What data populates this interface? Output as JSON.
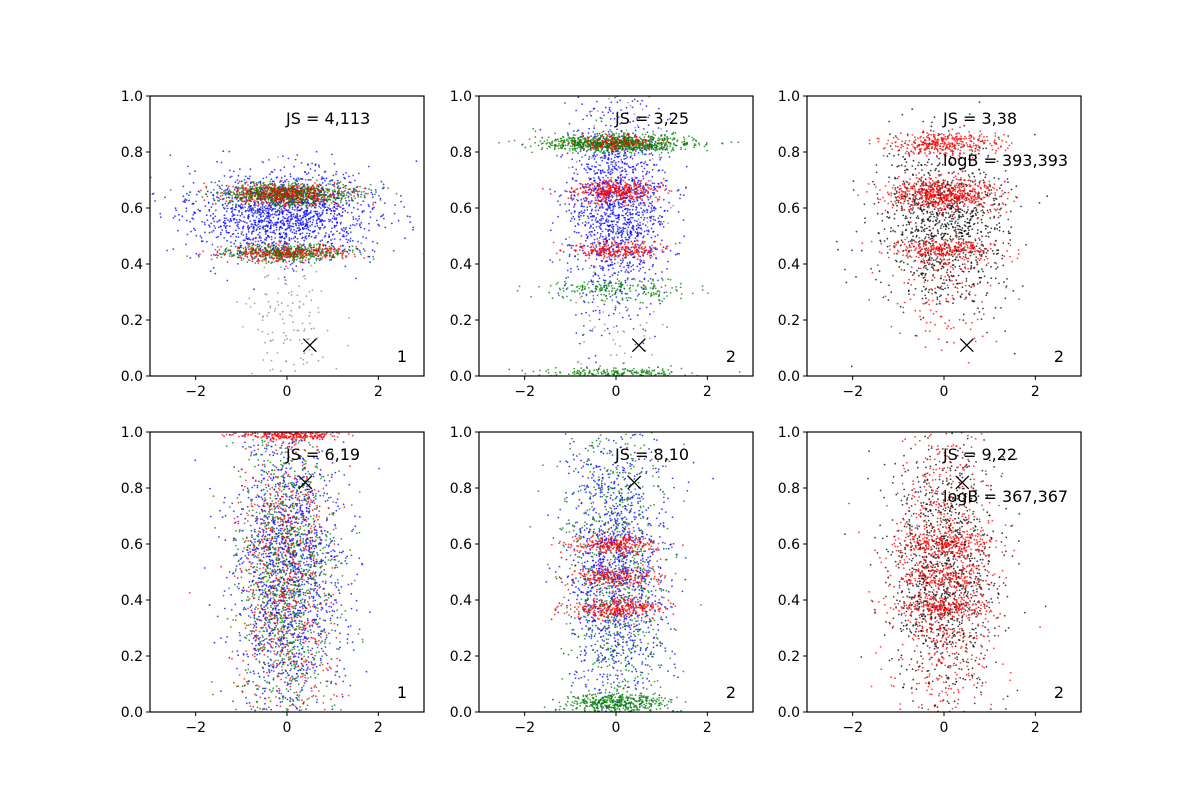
{
  "figure": {
    "background": "#ffffff"
  },
  "chart_data": [
    {
      "type": "scatter",
      "panel_row": 1,
      "panel_col": 1,
      "xlim": [
        -3,
        3
      ],
      "ylim": [
        0,
        1
      ],
      "xticks": [
        "−2",
        "0",
        "2"
      ],
      "xtick_values": [
        -2,
        0,
        2
      ],
      "yticks": [
        "0.0",
        "0.2",
        "0.4",
        "0.6",
        "0.8",
        "1.0"
      ],
      "ytick_values": [
        0,
        0.2,
        0.4,
        0.6,
        0.8,
        1.0
      ],
      "annotations": [
        "JS = 4,113"
      ],
      "corner_label": "1",
      "marker": {
        "x": 0.5,
        "y": 0.11,
        "symbol": "x",
        "color": "#000000"
      },
      "series": [
        {
          "color": "#0000ff",
          "x_spread": 1.0,
          "y_bands": [
            [
              0.58,
              0.08,
              0.45
            ]
          ],
          "count": 1500
        },
        {
          "color": "#008000",
          "x_spread": 0.7,
          "y_bands": [
            [
              0.65,
              0.02,
              0.55
            ],
            [
              0.44,
              0.015,
              0.3
            ]
          ],
          "count": 1300
        },
        {
          "color": "#ff0000",
          "x_spread": 0.7,
          "y_bands": [
            [
              0.65,
              0.02,
              0.6
            ],
            [
              0.44,
              0.015,
              0.4
            ]
          ],
          "count": 700
        },
        {
          "color": "#888888",
          "x_spread": 0.5,
          "y_bands": [
            [
              0.2,
              0.15,
              1.0
            ]
          ],
          "count": 150
        }
      ]
    },
    {
      "type": "scatter",
      "panel_row": 1,
      "panel_col": 2,
      "xlim": [
        -3,
        3
      ],
      "ylim": [
        0,
        1
      ],
      "xticks": [
        "−2",
        "0",
        "2"
      ],
      "xtick_values": [
        -2,
        0,
        2
      ],
      "yticks": [
        "0.0",
        "0.2",
        "0.4",
        "0.6",
        "0.8",
        "1.0"
      ],
      "ytick_values": [
        0,
        0.2,
        0.4,
        0.6,
        0.8,
        1.0
      ],
      "annotations": [
        "JS = 3,25"
      ],
      "corner_label": "2",
      "marker": {
        "x": 0.5,
        "y": 0.11,
        "symbol": "x",
        "color": "#000000"
      },
      "series": [
        {
          "color": "#0000ff",
          "x_spread": 0.55,
          "y_bands": [
            [
              0.6,
              0.18,
              1.0
            ]
          ],
          "count": 1400
        },
        {
          "color": "#008000",
          "x_spread": 0.8,
          "y_bands": [
            [
              0.83,
              0.015,
              0.7
            ],
            [
              0.31,
              0.02,
              0.15
            ],
            [
              0.01,
              0.01,
              0.15
            ]
          ],
          "count": 1300
        },
        {
          "color": "#ff0000",
          "x_spread": 0.5,
          "y_bands": [
            [
              0.66,
              0.02,
              0.5
            ],
            [
              0.45,
              0.015,
              0.3
            ],
            [
              0.83,
              0.015,
              0.2
            ]
          ],
          "count": 800
        },
        {
          "color": "#888888",
          "x_spread": 0.5,
          "y_bands": [
            [
              0.5,
              0.3,
              1.0
            ]
          ],
          "count": 150
        }
      ]
    },
    {
      "type": "scatter",
      "panel_row": 1,
      "panel_col": 3,
      "xlim": [
        -3,
        3
      ],
      "ylim": [
        0,
        1
      ],
      "xticks": [
        "−2",
        "0",
        "2"
      ],
      "xtick_values": [
        -2,
        0,
        2
      ],
      "yticks": [
        "0.0",
        "0.2",
        "0.4",
        "0.6",
        "0.8",
        "1.0"
      ],
      "ytick_values": [
        0,
        0.2,
        0.4,
        0.6,
        0.8,
        1.0
      ],
      "annotations": [
        "JS = 3,38",
        "logB = 393,393"
      ],
      "corner_label": "2",
      "marker": {
        "x": 0.5,
        "y": 0.11,
        "symbol": "x",
        "color": "#000000"
      },
      "series": [
        {
          "color": "#000000",
          "x_spread": 0.7,
          "y_bands": [
            [
              0.55,
              0.15,
              1.0
            ]
          ],
          "count": 1100
        },
        {
          "color": "#ff0000",
          "x_spread": 0.6,
          "y_bands": [
            [
              0.65,
              0.03,
              0.45
            ],
            [
              0.83,
              0.02,
              0.25
            ],
            [
              0.45,
              0.02,
              0.2
            ],
            [
              0.3,
              0.1,
              0.1
            ]
          ],
          "count": 1400
        }
      ]
    },
    {
      "type": "scatter",
      "panel_row": 2,
      "panel_col": 1,
      "xlim": [
        -3,
        3
      ],
      "ylim": [
        0,
        1
      ],
      "xticks": [
        "−2",
        "0",
        "2"
      ],
      "xtick_values": [
        -2,
        0,
        2
      ],
      "yticks": [
        "0.0",
        "0.2",
        "0.4",
        "0.6",
        "0.8",
        "1.0"
      ],
      "ytick_values": [
        0,
        0.2,
        0.4,
        0.6,
        0.8,
        1.0
      ],
      "annotations": [
        "JS = 6,19"
      ],
      "corner_label": "1",
      "marker": {
        "x": 0.4,
        "y": 0.82,
        "symbol": "x",
        "color": "#000000"
      },
      "series": [
        {
          "color": "#0000ff",
          "x_spread": 0.6,
          "y_bands": [
            [
              0.5,
              0.25,
              1.0
            ]
          ],
          "count": 1500
        },
        {
          "color": "#008000",
          "x_spread": 0.55,
          "y_bands": [
            [
              0.5,
              0.28,
              1.0
            ]
          ],
          "count": 1000
        },
        {
          "color": "#ff0000",
          "x_spread": 0.55,
          "y_bands": [
            [
              0.5,
              0.28,
              0.7
            ],
            [
              0.99,
              0.01,
              0.3
            ]
          ],
          "count": 900
        }
      ]
    },
    {
      "type": "scatter",
      "panel_row": 2,
      "panel_col": 2,
      "xlim": [
        -3,
        3
      ],
      "ylim": [
        0,
        1
      ],
      "xticks": [
        "−2",
        "0",
        "2"
      ],
      "xtick_values": [
        -2,
        0,
        2
      ],
      "yticks": [
        "0.0",
        "0.2",
        "0.4",
        "0.6",
        "0.8",
        "1.0"
      ],
      "ytick_values": [
        0,
        0.2,
        0.4,
        0.6,
        0.8,
        1.0
      ],
      "annotations": [
        "JS = 8,10"
      ],
      "corner_label": "2",
      "marker": {
        "x": 0.4,
        "y": 0.82,
        "symbol": "x",
        "color": "#000000"
      },
      "series": [
        {
          "color": "#0000ff",
          "x_spread": 0.55,
          "y_bands": [
            [
              0.5,
              0.25,
              1.0
            ]
          ],
          "count": 1300
        },
        {
          "color": "#008000",
          "x_spread": 0.55,
          "y_bands": [
            [
              0.5,
              0.28,
              0.6
            ],
            [
              0.03,
              0.02,
              0.4
            ]
          ],
          "count": 1100
        },
        {
          "color": "#ff0000",
          "x_spread": 0.5,
          "y_bands": [
            [
              0.6,
              0.02,
              0.3
            ],
            [
              0.48,
              0.02,
              0.3
            ],
            [
              0.37,
              0.02,
              0.4
            ]
          ],
          "count": 800
        }
      ]
    },
    {
      "type": "scatter",
      "panel_row": 2,
      "panel_col": 3,
      "xlim": [
        -3,
        3
      ],
      "ylim": [
        0,
        1
      ],
      "xticks": [
        "−2",
        "0",
        "2"
      ],
      "xtick_values": [
        -2,
        0,
        2
      ],
      "yticks": [
        "0.0",
        "0.2",
        "0.4",
        "0.6",
        "0.8",
        "1.0"
      ],
      "ytick_values": [
        0,
        0.2,
        0.4,
        0.6,
        0.8,
        1.0
      ],
      "annotations": [
        "JS = 9,22",
        "logB = 367,367"
      ],
      "corner_label": "2",
      "marker": {
        "x": 0.4,
        "y": 0.82,
        "symbol": "x",
        "color": "#000000"
      },
      "series": [
        {
          "color": "#000000",
          "x_spread": 0.6,
          "y_bands": [
            [
              0.5,
              0.22,
              1.0
            ]
          ],
          "count": 1100
        },
        {
          "color": "#ff0000",
          "x_spread": 0.55,
          "y_bands": [
            [
              0.5,
              0.28,
              0.6
            ],
            [
              0.6,
              0.02,
              0.15
            ],
            [
              0.48,
              0.02,
              0.1
            ],
            [
              0.37,
              0.02,
              0.15
            ]
          ],
          "count": 1400
        }
      ]
    }
  ]
}
